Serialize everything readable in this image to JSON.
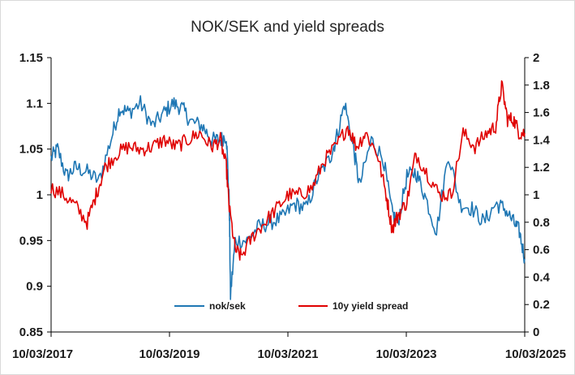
{
  "chart_data": {
    "type": "line",
    "title": "NOK/SEK and yield spreads",
    "xlabel": "",
    "ylabel": "",
    "x_tick_labels": [
      "10/03/2017",
      "10/03/2019",
      "10/03/2021",
      "10/03/2023",
      "10/03/2025"
    ],
    "x_range": [
      2017.19,
      2025.19
    ],
    "left_axis": {
      "ylim": [
        0.85,
        1.15
      ],
      "ticks": [
        "0.85",
        "0.9",
        "0.95",
        "1",
        "1.05",
        "1.1",
        "1.15"
      ]
    },
    "right_axis": {
      "ylim": [
        0,
        2
      ],
      "ticks": [
        "0",
        "0.2",
        "0.4",
        "0.6",
        "0.8",
        "1",
        "1.2",
        "1.4",
        "1.6",
        "1.8",
        "2"
      ]
    },
    "grid": false,
    "legend_position": "bottom-center",
    "series": [
      {
        "name": "nok/sek",
        "axis": "left",
        "color": "#1f77b4",
        "x": [
          2017.19,
          2017.3,
          2017.45,
          2017.6,
          2017.8,
          2018.0,
          2018.2,
          2018.35,
          2018.5,
          2018.7,
          2018.9,
          2019.1,
          2019.25,
          2019.4,
          2019.55,
          2019.75,
          2019.9,
          2020.05,
          2020.15,
          2020.2,
          2020.22,
          2020.3,
          2020.5,
          2020.7,
          2020.9,
          2021.1,
          2021.3,
          2021.5,
          2021.7,
          2021.9,
          2022.0,
          2022.15,
          2022.3,
          2022.4,
          2022.6,
          2022.8,
          2022.95,
          2023.05,
          2023.2,
          2023.35,
          2023.5,
          2023.7,
          2023.9,
          2024.1,
          2024.3,
          2024.5,
          2024.7,
          2024.85,
          2025.0,
          2025.1,
          2025.19
        ],
        "values": [
          1.04,
          1.05,
          1.02,
          1.03,
          1.025,
          1.015,
          1.06,
          1.095,
          1.09,
          1.1,
          1.075,
          1.09,
          1.1,
          1.095,
          1.08,
          1.075,
          1.06,
          1.06,
          1.065,
          0.99,
          0.89,
          0.95,
          0.95,
          0.965,
          0.97,
          0.975,
          0.99,
          0.985,
          1.02,
          1.04,
          1.06,
          1.1,
          1.05,
          1.01,
          1.06,
          1.04,
          0.98,
          0.97,
          1.02,
          1.025,
          1.0,
          0.96,
          1.045,
          0.99,
          0.985,
          0.97,
          0.99,
          0.985,
          0.97,
          0.96,
          0.93
        ]
      },
      {
        "name": "10y yield spread",
        "axis": "right",
        "color": "#e00000",
        "x": [
          2017.19,
          2017.4,
          2017.6,
          2017.8,
          2017.95,
          2018.1,
          2018.3,
          2018.5,
          2018.7,
          2018.9,
          2019.1,
          2019.3,
          2019.5,
          2019.7,
          2019.9,
          2020.05,
          2020.15,
          2020.2,
          2020.3,
          2020.4,
          2020.6,
          2020.8,
          2021.0,
          2021.2,
          2021.4,
          2021.6,
          2021.8,
          2022.0,
          2022.2,
          2022.35,
          2022.5,
          2022.7,
          2022.85,
          2022.95,
          2023.05,
          2023.2,
          2023.35,
          2023.55,
          2023.75,
          2023.95,
          2024.15,
          2024.35,
          2024.55,
          2024.7,
          2024.8,
          2024.9,
          2025.0,
          2025.1,
          2025.19
        ],
        "values": [
          1.05,
          1.0,
          0.92,
          0.8,
          1.0,
          1.2,
          1.3,
          1.35,
          1.33,
          1.35,
          1.4,
          1.35,
          1.4,
          1.45,
          1.35,
          1.4,
          1.2,
          0.9,
          0.6,
          0.55,
          0.7,
          0.8,
          0.9,
          1.0,
          1.0,
          1.05,
          1.25,
          1.35,
          1.5,
          1.35,
          1.45,
          1.3,
          1.0,
          0.75,
          0.85,
          0.95,
          1.3,
          1.15,
          1.0,
          1.0,
          1.45,
          1.35,
          1.45,
          1.5,
          1.8,
          1.55,
          1.55,
          1.45,
          1.45
        ]
      }
    ]
  }
}
